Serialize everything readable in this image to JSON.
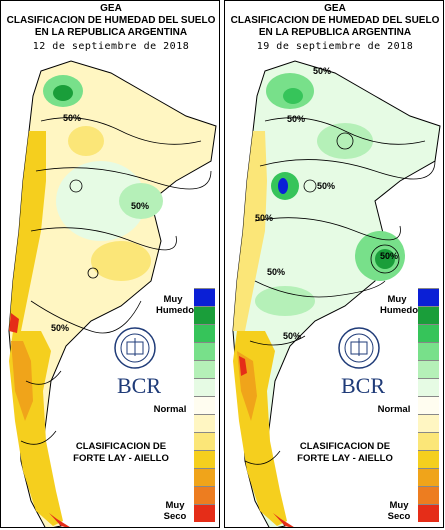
{
  "colors": {
    "very_wet": "#0a1fd6",
    "legend": [
      "#0a1fd6",
      "#1a9e3a",
      "#36c45a",
      "#78e08a",
      "#b5f0b8",
      "#e6fbe4",
      "#fffdf0",
      "#fff6c2",
      "#fbe678",
      "#f5cf1e",
      "#f0a41a",
      "#ed7d20",
      "#e52d18"
    ],
    "brand": "#1f3b78"
  },
  "panels": [
    {
      "title_line1": "GEA",
      "title_line2": "CLASIFICACION DE HUMEDAD DEL SUELO",
      "title_line3": "EN LA REPUBLICA ARGENTINA",
      "date": "12 de septiembre de 2018",
      "legend_top": "Muy Humedo",
      "legend_top_l1": "Muy",
      "legend_top_l2": "Humedo",
      "legend_normal": "Normal",
      "legend_bottom_l1": "Muy",
      "legend_bottom_l2": "Seco",
      "classification_l1": "CLASIFICACION DE",
      "classification_l2": "FORTE LAY - AIELLO",
      "brand": "BCR",
      "iso_labels": [
        "50%",
        "50%",
        "50%"
      ]
    },
    {
      "title_line1": "GEA",
      "title_line2": "CLASIFICACION DE HUMEDAD DEL SUELO",
      "title_line3": "EN LA REPUBLICA ARGENTINA",
      "date": "19 de septiembre de 2018",
      "legend_top_l1": "Muy",
      "legend_top_l2": "Humedo",
      "legend_normal": "Normal",
      "legend_bottom_l1": "Muy",
      "legend_bottom_l2": "Seco",
      "classification_l1": "CLASIFICACION DE",
      "classification_l2": "FORTE LAY - AIELLO",
      "brand": "BCR",
      "iso_labels": [
        "50%",
        "50%",
        "50%",
        "50%",
        "50%",
        "50%",
        "50%"
      ]
    }
  ]
}
